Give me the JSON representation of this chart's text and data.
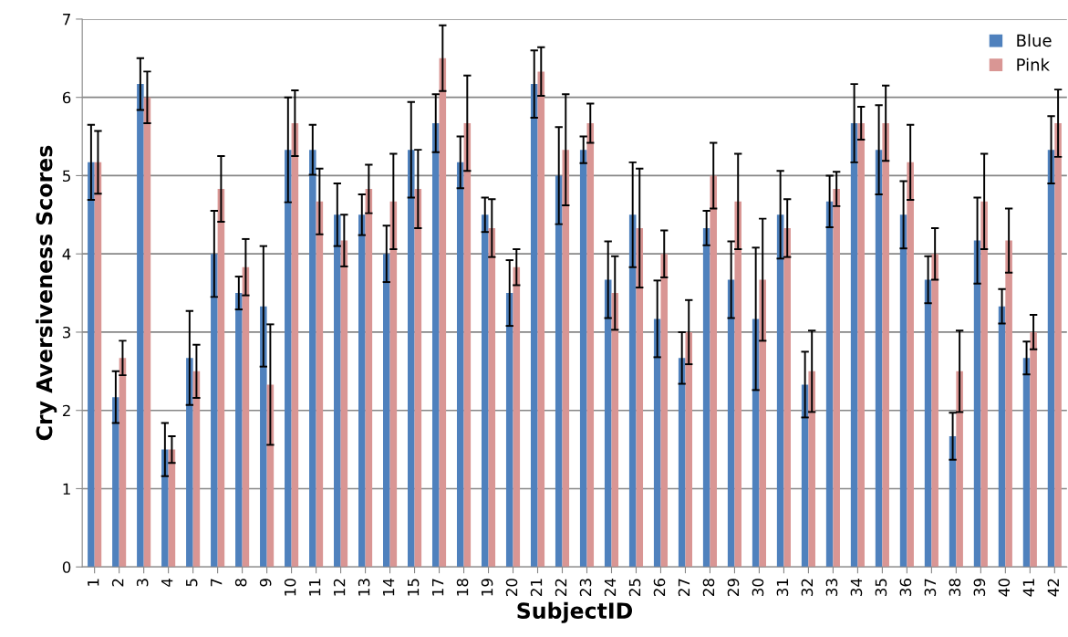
{
  "chart_data": {
    "type": "bar",
    "xlabel": "SubjectID",
    "ylabel": "Cry Aversiveness Scores",
    "categories": [
      "1",
      "2",
      "3",
      "4",
      "5",
      "7",
      "8",
      "9",
      "10",
      "11",
      "12",
      "13",
      "14",
      "15",
      "17",
      "18",
      "19",
      "20",
      "21",
      "22",
      "23",
      "24",
      "25",
      "26",
      "27",
      "28",
      "29",
      "30",
      "31",
      "32",
      "33",
      "34",
      "35",
      "36",
      "37",
      "38",
      "39",
      "40",
      "41",
      "42"
    ],
    "series": [
      {
        "name": "Blue",
        "color": "#4f81bd",
        "values": [
          5.17,
          2.17,
          6.17,
          1.5,
          2.67,
          4.0,
          3.5,
          3.33,
          5.33,
          5.33,
          4.5,
          4.5,
          4.0,
          5.33,
          5.67,
          5.17,
          4.5,
          3.5,
          6.17,
          5.0,
          5.33,
          3.67,
          4.5,
          3.17,
          2.67,
          4.33,
          3.67,
          3.17,
          4.5,
          2.33,
          4.67,
          5.67,
          5.33,
          4.5,
          3.67,
          1.67,
          4.17,
          3.33,
          2.67,
          5.33
        ],
        "errors": [
          0.48,
          0.33,
          0.33,
          0.34,
          0.6,
          0.55,
          0.21,
          0.77,
          0.67,
          0.32,
          0.4,
          0.26,
          0.36,
          0.61,
          0.37,
          0.33,
          0.22,
          0.42,
          0.43,
          0.62,
          0.17,
          0.49,
          0.67,
          0.49,
          0.33,
          0.22,
          0.49,
          0.91,
          0.56,
          0.42,
          0.33,
          0.5,
          0.57,
          0.43,
          0.3,
          0.3,
          0.55,
          0.22,
          0.21,
          0.43
        ]
      },
      {
        "name": "Pink",
        "color": "#d99694",
        "values": [
          5.17,
          2.67,
          6.0,
          1.5,
          2.5,
          4.83,
          3.83,
          2.33,
          5.67,
          4.67,
          4.17,
          4.83,
          4.67,
          4.83,
          6.5,
          5.67,
          4.33,
          3.83,
          6.33,
          5.33,
          5.67,
          3.5,
          4.33,
          4.0,
          3.0,
          5.0,
          4.67,
          3.67,
          4.33,
          2.5,
          4.83,
          5.67,
          5.67,
          5.17,
          4.0,
          2.5,
          4.67,
          4.17,
          3.0,
          5.67
        ],
        "errors": [
          0.4,
          0.22,
          0.33,
          0.17,
          0.34,
          0.42,
          0.36,
          0.77,
          0.42,
          0.42,
          0.33,
          0.31,
          0.61,
          0.5,
          0.42,
          0.61,
          0.37,
          0.23,
          0.31,
          0.71,
          0.25,
          0.47,
          0.76,
          0.3,
          0.41,
          0.42,
          0.61,
          0.78,
          0.37,
          0.52,
          0.22,
          0.21,
          0.48,
          0.48,
          0.33,
          0.52,
          0.61,
          0.41,
          0.22,
          0.43
        ]
      }
    ],
    "ylim": [
      0,
      7
    ],
    "yticks": [
      0,
      1,
      2,
      3,
      4,
      5,
      6,
      7
    ],
    "grid": "y",
    "legend": "top right"
  }
}
